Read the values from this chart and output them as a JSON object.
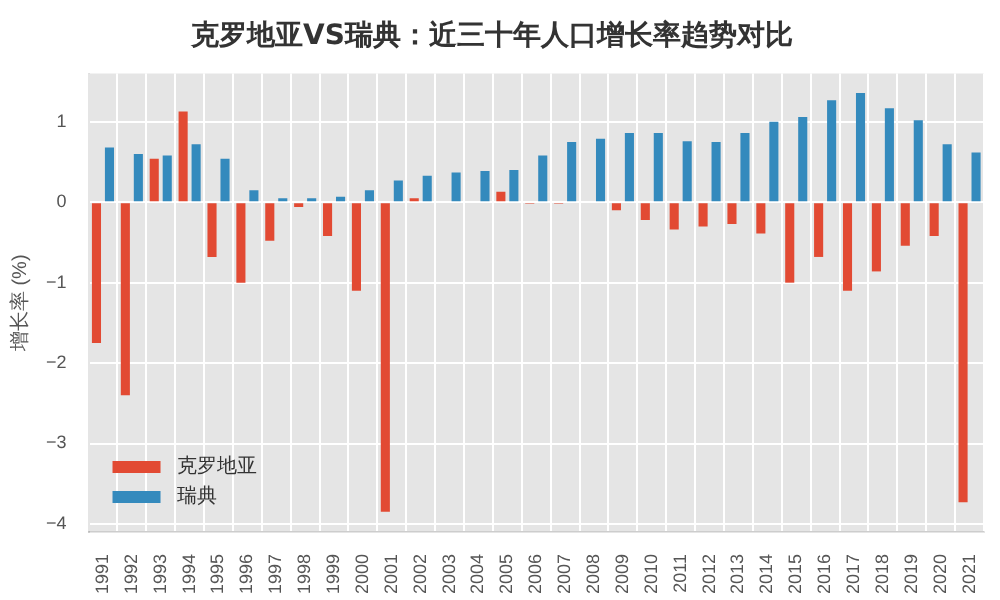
{
  "chart_data": {
    "type": "bar",
    "title": "克罗地亚VS瑞典：近三十年人口增长率趋势对比",
    "ylabel": "增长率 (%)",
    "categories": [
      "1991",
      "1992",
      "1993",
      "1994",
      "1995",
      "1996",
      "1997",
      "1998",
      "1999",
      "2000",
      "2001",
      "2002",
      "2003",
      "2004",
      "2005",
      "2006",
      "2007",
      "2008",
      "2009",
      "2010",
      "2011",
      "2012",
      "2013",
      "2014",
      "2015",
      "2016",
      "2017",
      "2018",
      "2019",
      "2020",
      "2021"
    ],
    "series": [
      {
        "name": "克罗地亚",
        "color": "#e24a33",
        "values": [
          -1.75,
          -2.4,
          0.54,
          1.13,
          -0.68,
          -1.0,
          -0.48,
          -0.06,
          -0.42,
          -1.1,
          -3.85,
          0.05,
          null,
          null,
          0.13,
          -0.02,
          -0.02,
          null,
          -0.1,
          -0.22,
          -0.34,
          -0.3,
          -0.27,
          -0.39,
          -1.0,
          -0.68,
          -1.1,
          -0.86,
          -0.54,
          -0.42,
          -3.73
        ]
      },
      {
        "name": "瑞典",
        "color": "#348abd",
        "values": [
          0.68,
          0.6,
          0.58,
          0.72,
          0.54,
          0.15,
          0.05,
          0.05,
          0.07,
          0.15,
          0.27,
          0.33,
          0.37,
          0.39,
          0.4,
          0.58,
          0.75,
          0.79,
          0.86,
          0.86,
          0.76,
          0.75,
          0.86,
          1.0,
          1.06,
          1.27,
          1.36,
          1.17,
          1.02,
          0.72,
          0.62
        ]
      }
    ],
    "ylim": [
      -4.1,
      1.6
    ],
    "yticks": [
      -4,
      -3,
      -2,
      -1,
      0,
      1
    ],
    "grid": true,
    "legend": "bottom left"
  }
}
